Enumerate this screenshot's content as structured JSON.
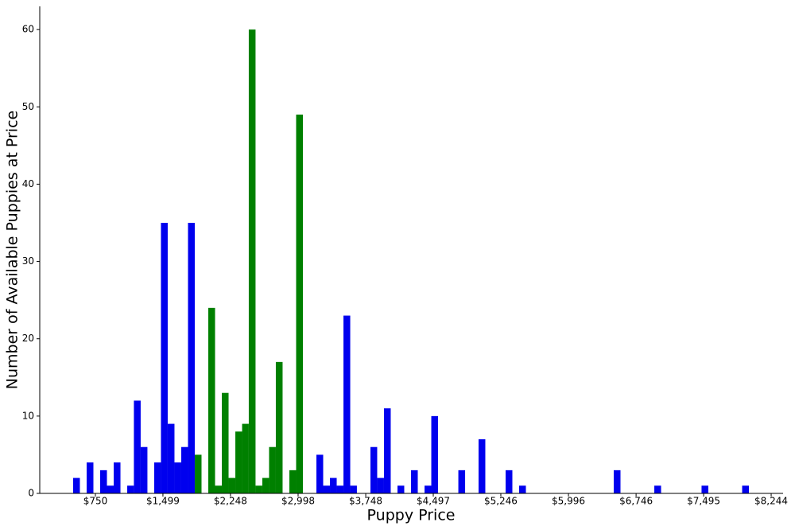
{
  "chart_data": {
    "type": "histogram",
    "xlabel": "Puppy Price",
    "ylabel": "Number of Available Puppies at Price",
    "bins": [
      503,
      578,
      653,
      728,
      803,
      878,
      953,
      1028,
      1103,
      1177,
      1252,
      1327,
      1402,
      1477,
      1552,
      1627,
      1702,
      1777,
      1852,
      1927,
      2002,
      2077,
      2152,
      2227,
      2302,
      2377,
      2451,
      2526,
      2601,
      2676,
      2751,
      2826,
      2901,
      2976,
      3051,
      3126,
      3201,
      3276,
      3351,
      3426,
      3501,
      3576,
      3650,
      3725,
      3800,
      3875,
      3950,
      4025,
      4100,
      4175,
      4250,
      4325,
      4400,
      4475,
      4550,
      4625,
      4700,
      4775,
      4850,
      4924,
      4999,
      5074,
      5149,
      5224,
      5299,
      5374,
      5449,
      5524,
      5599,
      5674,
      5749,
      5824,
      5899,
      5974,
      6049,
      6124,
      6198,
      6273,
      6348,
      6423,
      6498,
      6573,
      6648,
      6723,
      6798,
      6873,
      6948,
      7023,
      7098,
      7173,
      7248,
      7323,
      7397,
      7472,
      7547,
      7622,
      7697,
      7772,
      7847,
      7922,
      7997
    ],
    "series": [
      {
        "color": "#0000ee",
        "values": [
          2,
          0,
          4,
          0,
          3,
          1,
          4,
          0,
          1,
          12,
          6,
          0,
          4,
          35,
          9,
          4,
          6,
          35,
          0,
          0,
          0,
          0,
          0,
          0,
          0,
          0,
          0,
          0,
          0,
          0,
          0,
          0,
          0,
          0,
          0,
          0,
          5,
          1,
          2,
          1,
          23,
          1,
          0,
          0,
          6,
          2,
          11,
          0,
          1,
          0,
          3,
          0,
          1,
          10,
          0,
          0,
          0,
          3,
          0,
          0,
          7,
          0,
          0,
          0,
          3,
          0,
          1,
          0,
          0,
          0,
          0,
          0,
          0,
          0,
          0,
          0,
          0,
          0,
          0,
          0,
          3,
          0,
          0,
          0,
          0,
          0,
          1,
          0,
          0,
          0,
          0,
          0,
          0,
          1,
          0,
          0,
          0,
          0,
          0,
          1
        ]
      },
      {
        "color": "#008000",
        "values": [
          0,
          0,
          0,
          0,
          0,
          0,
          0,
          0,
          0,
          0,
          0,
          0,
          0,
          0,
          0,
          0,
          0,
          0,
          5,
          0,
          24,
          1,
          13,
          2,
          8,
          9,
          60,
          1,
          2,
          6,
          17,
          0,
          3,
          49,
          0,
          0,
          0,
          0,
          0,
          0,
          0,
          0,
          0,
          0,
          0,
          0,
          0,
          0,
          0,
          0,
          0,
          0,
          0,
          0,
          0,
          0,
          0,
          0,
          0,
          0,
          0,
          0,
          0,
          0,
          0,
          0,
          0,
          0,
          0,
          0,
          0,
          0,
          0,
          0,
          0,
          0,
          0,
          0,
          0,
          0,
          0,
          0,
          0,
          0,
          0,
          0,
          0,
          0,
          0,
          0,
          0,
          0,
          0,
          0,
          0,
          0,
          0,
          0,
          0,
          0
        ]
      }
    ],
    "xlim": [
      133,
      8376
    ],
    "ylim": [
      0,
      63
    ],
    "xticks": [
      {
        "value": 750,
        "label": "$750"
      },
      {
        "value": 1499,
        "label": "$1,499"
      },
      {
        "value": 2248,
        "label": "$2,248"
      },
      {
        "value": 2998,
        "label": "$2,998"
      },
      {
        "value": 3748,
        "label": "$3,748"
      },
      {
        "value": 4497,
        "label": "$4,497"
      },
      {
        "value": 5246,
        "label": "$5,246"
      },
      {
        "value": 5996,
        "label": "$5,996"
      },
      {
        "value": 6746,
        "label": "$6,746"
      },
      {
        "value": 7495,
        "label": "$7,495"
      },
      {
        "value": 8244,
        "label": "$8,244"
      }
    ],
    "yticks": [
      0,
      10,
      20,
      30,
      40,
      50,
      60
    ]
  }
}
